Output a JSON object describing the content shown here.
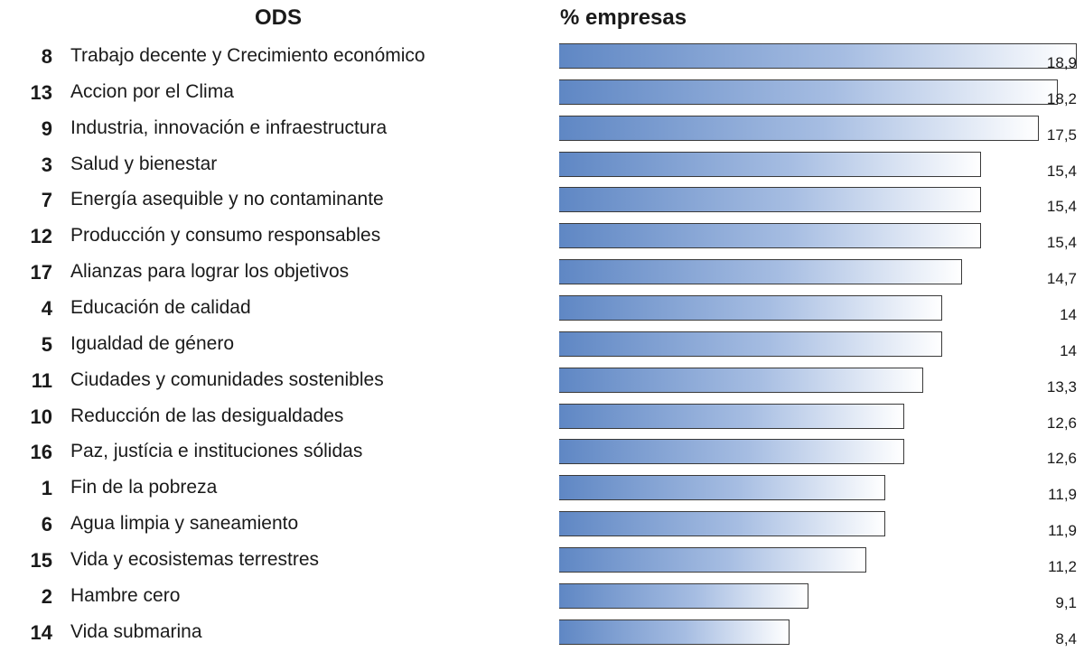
{
  "header": {
    "ods_label": "ODS",
    "pct_label": "% empresas"
  },
  "chart_data": {
    "type": "bar",
    "orientation": "horizontal",
    "xlabel": "% empresas",
    "xlim": [
      0,
      18.9
    ],
    "gradient_colors": [
      "#5f87c4",
      "#ffffff"
    ],
    "rows": [
      {
        "num": "8",
        "label": "Trabajo decente y Crecimiento económico",
        "value": 18.9,
        "value_text": "18,9"
      },
      {
        "num": "13",
        "label": "Accion por el Clima",
        "value": 18.2,
        "value_text": "18,2"
      },
      {
        "num": "9",
        "label": "Industria, innovación e infraestructura",
        "value": 17.5,
        "value_text": "17,5"
      },
      {
        "num": "3",
        "label": "Salud y bienestar",
        "value": 15.4,
        "value_text": "15,4"
      },
      {
        "num": "7",
        "label": "Energía asequible y no contaminante",
        "value": 15.4,
        "value_text": "15,4"
      },
      {
        "num": "12",
        "label": "Producción y consumo responsables",
        "value": 15.4,
        "value_text": "15,4"
      },
      {
        "num": "17",
        "label": "Alianzas para lograr los objetivos",
        "value": 14.7,
        "value_text": "14,7"
      },
      {
        "num": "4",
        "label": "Educación de calidad",
        "value": 14,
        "value_text": "14"
      },
      {
        "num": "5",
        "label": "Igualdad de género",
        "value": 14,
        "value_text": "14"
      },
      {
        "num": "11",
        "label": "Ciudades y comunidades sostenibles",
        "value": 13.3,
        "value_text": "13,3"
      },
      {
        "num": "10",
        "label": "Reducción de las desigualdades",
        "value": 12.6,
        "value_text": "12,6"
      },
      {
        "num": "16",
        "label": "Paz, justícia e instituciones sólidas",
        "value": 12.6,
        "value_text": "12,6"
      },
      {
        "num": "1",
        "label": "Fin de la pobreza",
        "value": 11.9,
        "value_text": "11,9"
      },
      {
        "num": "6",
        "label": "Agua limpia y saneamiento",
        "value": 11.9,
        "value_text": "11,9"
      },
      {
        "num": "15",
        "label": "Vida y ecosistemas terrestres",
        "value": 11.2,
        "value_text": "11,2"
      },
      {
        "num": "2",
        "label": "Hambre cero",
        "value": 9.1,
        "value_text": "9,1"
      },
      {
        "num": "14",
        "label": "Vida submarina",
        "value": 8.4,
        "value_text": "8,4"
      }
    ]
  }
}
